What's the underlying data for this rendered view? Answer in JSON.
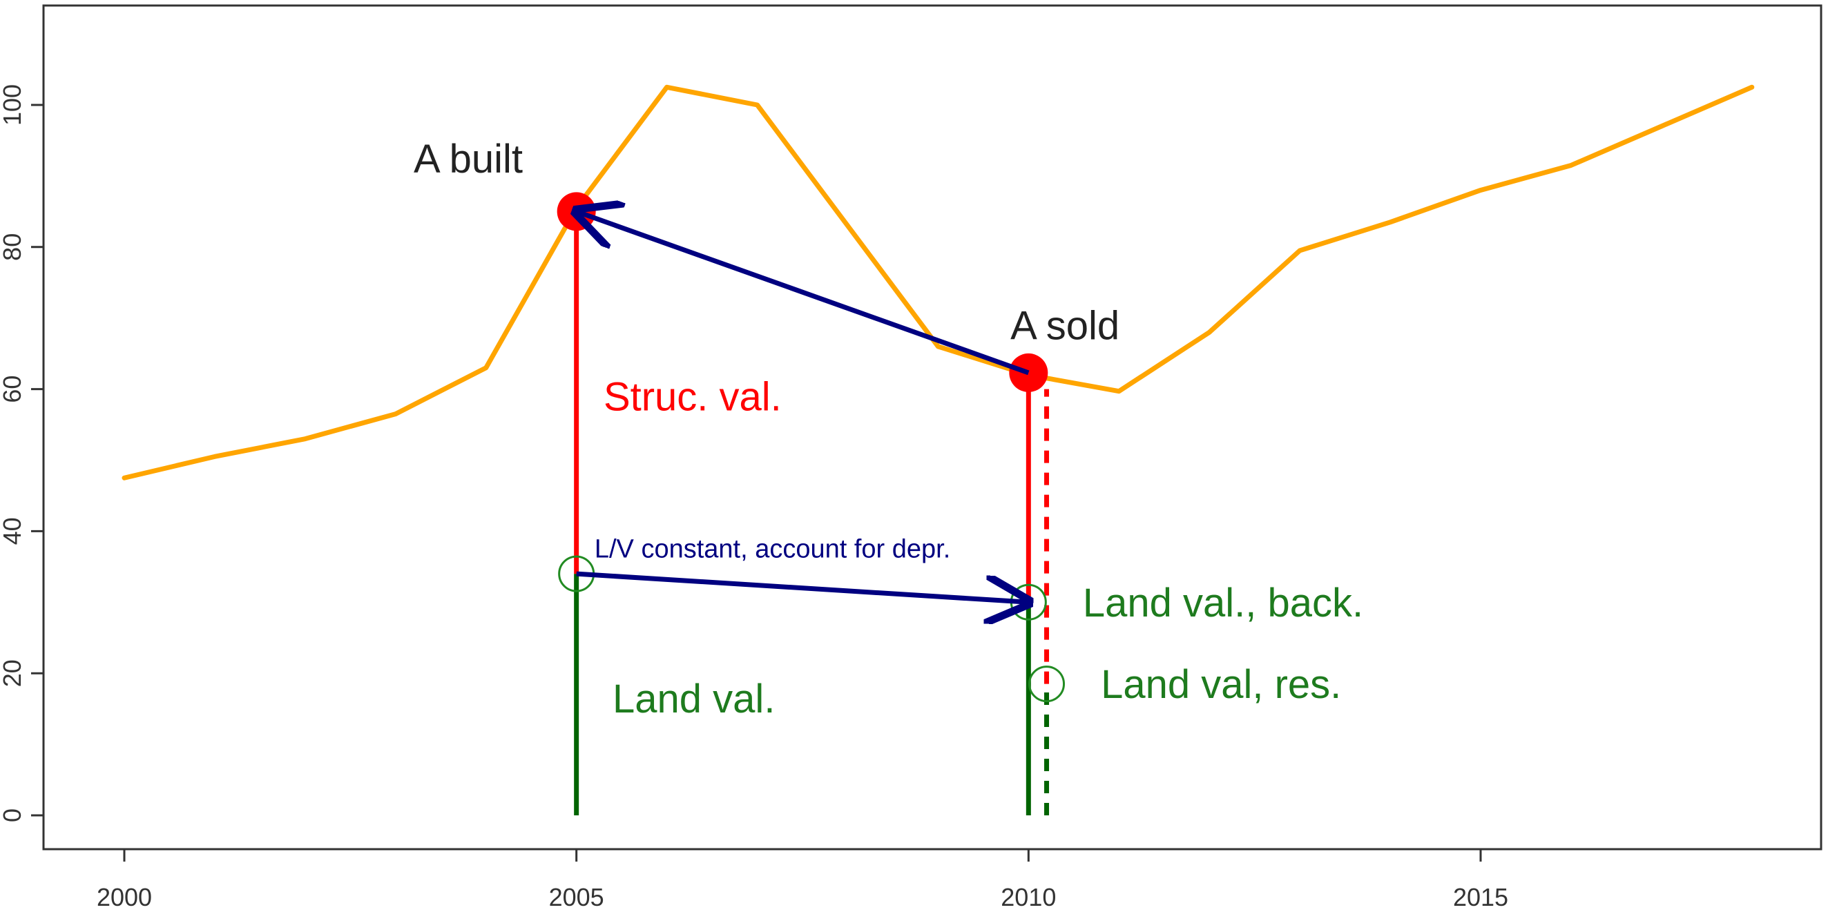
{
  "chart_data": {
    "type": "line",
    "title": "",
    "xlabel": "",
    "ylabel": "",
    "xlim": [
      2000,
      2018
    ],
    "ylim": [
      -3,
      113
    ],
    "x_ticks": [
      "2000",
      "2005",
      "2010",
      "2015"
    ],
    "y_ticks": [
      "0",
      "20",
      "40",
      "60",
      "80",
      "100"
    ],
    "grid": false,
    "series": [
      {
        "color": "#FFA500",
        "x": [
          2000,
          2001,
          2002,
          2003,
          2004,
          2005,
          2006,
          2007,
          2008,
          2009,
          2010,
          2011,
          2012,
          2013,
          2014,
          2015,
          2016,
          2017,
          2018
        ],
        "y": [
          47.5,
          50.5,
          53,
          56.5,
          63,
          85.5,
          102.5,
          100,
          83,
          66,
          62,
          59.7,
          68,
          79.5,
          83.5,
          88,
          91.5,
          97,
          102.5
        ]
      }
    ],
    "points": {
      "a_built": {
        "x": 2005,
        "y": 85,
        "color": "#FF0000"
      },
      "a_sold": {
        "x": 2010,
        "y": 62.3,
        "color": "#FF0000"
      }
    },
    "vertical_segments": [
      {
        "x": 2005,
        "y0": 0,
        "y1": 34,
        "color": "#006400",
        "style": "solid"
      },
      {
        "x": 2005,
        "y0": 34,
        "y1": 85,
        "color": "#FF0000",
        "style": "solid"
      },
      {
        "x": 2010,
        "y0": 0,
        "y1": 30,
        "color": "#006400",
        "style": "solid"
      },
      {
        "x": 2010,
        "y0": 30,
        "y1": 62.3,
        "color": "#FF0000",
        "style": "solid"
      },
      {
        "x": 2010.2,
        "y0": 0,
        "y1": 18.5,
        "color": "#006400",
        "style": "dashed"
      },
      {
        "x": 2010.2,
        "y0": 18.5,
        "y1": 60,
        "color": "#FF0000",
        "style": "dashed"
      }
    ],
    "open_circles": [
      {
        "x": 2005,
        "y": 34,
        "color": "#228B22"
      },
      {
        "x": 2010,
        "y": 30,
        "color": "#228B22"
      },
      {
        "x": 2010.2,
        "y": 18.5,
        "color": "#228B22"
      }
    ],
    "arrows": [
      {
        "from": [
          2010,
          62.3
        ],
        "to": [
          2005,
          85
        ],
        "color": "#000080"
      },
      {
        "from": [
          2005,
          34
        ],
        "to": [
          2010,
          30
        ],
        "color": "#000080"
      }
    ],
    "annotations": [
      {
        "text": "A built",
        "x": 2003.2,
        "y": 90.5,
        "color": "#222222",
        "size": "large"
      },
      {
        "text": "A sold",
        "x": 2009.8,
        "y": 67,
        "color": "#222222",
        "size": "large"
      },
      {
        "text": "Struc. val.",
        "x": 2005.3,
        "y": 57,
        "color": "#FF0000",
        "size": "large"
      },
      {
        "text": "L/V constant, account for depr.",
        "x": 2005.2,
        "y": 36.3,
        "color": "#000080",
        "size": "small"
      },
      {
        "text": "Land val., back.",
        "x": 2010.6,
        "y": 28,
        "color": "#1E7B1E",
        "size": "large"
      },
      {
        "text": "Land val, res.",
        "x": 2010.8,
        "y": 16.5,
        "color": "#1E7B1E",
        "size": "large"
      },
      {
        "text": "Land val.",
        "x": 2005.4,
        "y": 14.5,
        "color": "#1E7B1E",
        "size": "large"
      }
    ]
  }
}
